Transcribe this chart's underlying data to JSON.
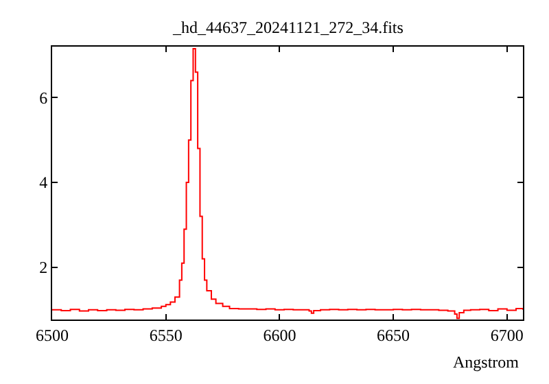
{
  "chart_data": {
    "type": "step",
    "title": "_hd_44637_20241121_272_34.fits",
    "xlabel": "Angstrom",
    "x": [
      6500,
      6504,
      6508,
      6512,
      6516,
      6520,
      6524,
      6528,
      6532,
      6536,
      6540,
      6544,
      6548,
      6550,
      6552,
      6554,
      6556,
      6557,
      6558,
      6559,
      6560,
      6561,
      6562,
      6563,
      6564,
      6565,
      6566,
      6567,
      6568,
      6570,
      6572,
      6575,
      6578,
      6582,
      6586,
      6590,
      6594,
      6598,
      6602,
      6606,
      6610,
      6613,
      6614,
      6615,
      6618,
      6622,
      6626,
      6630,
      6634,
      6638,
      6642,
      6646,
      6650,
      6654,
      6658,
      6662,
      6666,
      6670,
      6674,
      6677,
      6678,
      6679,
      6681,
      6684,
      6688,
      6692,
      6696,
      6700,
      6704,
      6707
    ],
    "series": [
      {
        "color": "#ff0000",
        "values": [
          1.0,
          0.98,
          1.01,
          0.97,
          1.0,
          0.98,
          1.0,
          0.99,
          1.01,
          1.0,
          1.02,
          1.04,
          1.08,
          1.12,
          1.18,
          1.3,
          1.7,
          2.1,
          2.9,
          4.0,
          5.0,
          6.4,
          7.15,
          6.6,
          4.8,
          3.2,
          2.2,
          1.7,
          1.45,
          1.25,
          1.15,
          1.08,
          1.03,
          1.02,
          1.02,
          1.01,
          1.02,
          1.0,
          1.01,
          1.0,
          1.0,
          0.97,
          0.92,
          0.98,
          1.0,
          1.01,
          1.0,
          1.01,
          1.0,
          1.01,
          1.0,
          1.0,
          1.01,
          1.0,
          1.01,
          1.0,
          1.0,
          0.99,
          0.97,
          0.9,
          0.8,
          0.93,
          0.99,
          1.0,
          1.01,
          0.98,
          1.02,
          0.99,
          1.03,
          1.0
        ]
      }
    ],
    "xlim": [
      6500,
      6707
    ],
    "ylim": [
      0.77,
      7.2
    ],
    "xticks": [
      6500,
      6550,
      6600,
      6650,
      6700
    ],
    "yticks": [
      2,
      4,
      6
    ],
    "grid": false
  }
}
